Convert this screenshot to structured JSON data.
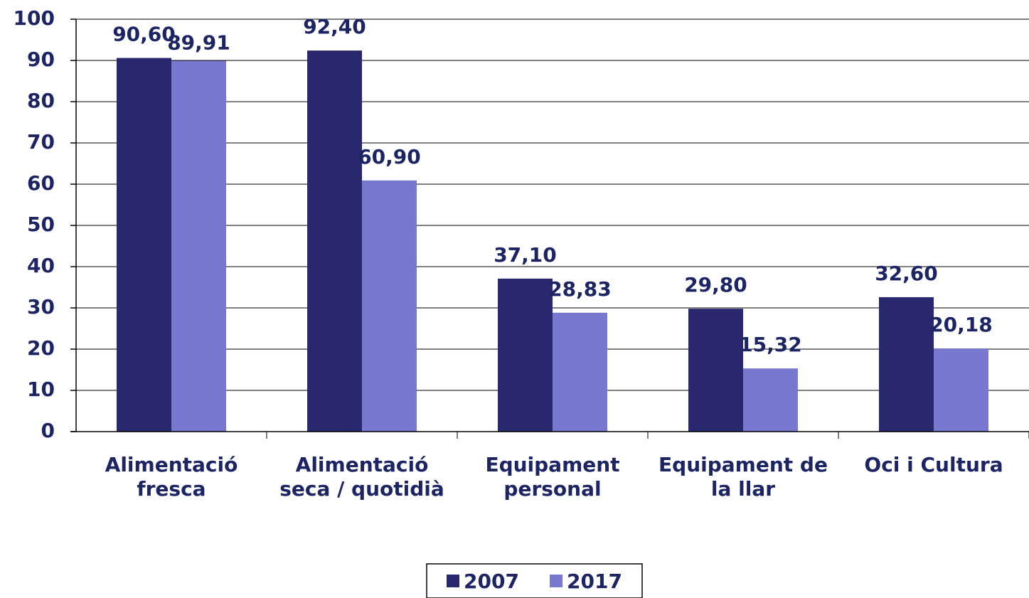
{
  "chart_data": {
    "type": "bar",
    "categories": [
      "Alimentació fresca",
      "Alimentació seca / quotidià",
      "Equipament personal",
      "Equipament de la llar",
      "Oci i Cultura"
    ],
    "series": [
      {
        "name": "2007",
        "color": "#29286e",
        "values": [
          90.6,
          92.4,
          37.1,
          29.8,
          32.6
        ],
        "value_labels": [
          "90,60",
          "92,40",
          "37,10",
          "29,80",
          "32,60"
        ]
      },
      {
        "name": "2017",
        "color": "#7878d0",
        "values": [
          89.91,
          60.9,
          28.83,
          15.32,
          20.18
        ],
        "value_labels": [
          "89,91",
          "60,90",
          "28,83",
          "15,32",
          "20,18"
        ]
      }
    ],
    "ylim": [
      0,
      100
    ],
    "yticks": [
      0,
      10,
      20,
      30,
      40,
      50,
      60,
      70,
      80,
      90,
      100
    ],
    "grid": true,
    "legend": "bottom"
  }
}
